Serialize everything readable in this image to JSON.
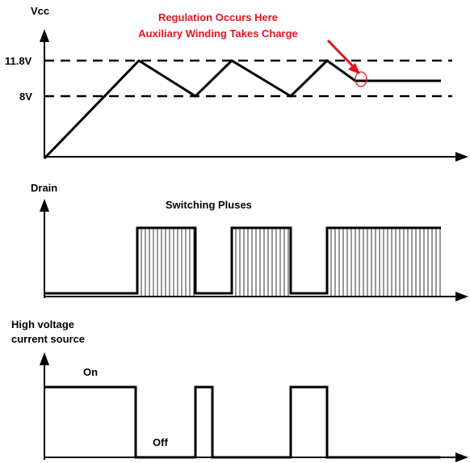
{
  "colors": {
    "ink": "#000000",
    "annotation": "#e8101e"
  },
  "vcc_panel": {
    "axis_label": "Vcc",
    "level_high": "11.8V",
    "level_low": "8V",
    "annotation_line1": "Regulation Occurs Here",
    "annotation_line2": "Auxiliary Winding Takes Charge"
  },
  "drain_panel": {
    "axis_label": "Drain",
    "pulses_label": "Switching Pluses"
  },
  "hv_panel": {
    "axis_label_line1": "High voltage",
    "axis_label_line2": "current source",
    "on_label": "On",
    "off_label": "Off"
  }
}
